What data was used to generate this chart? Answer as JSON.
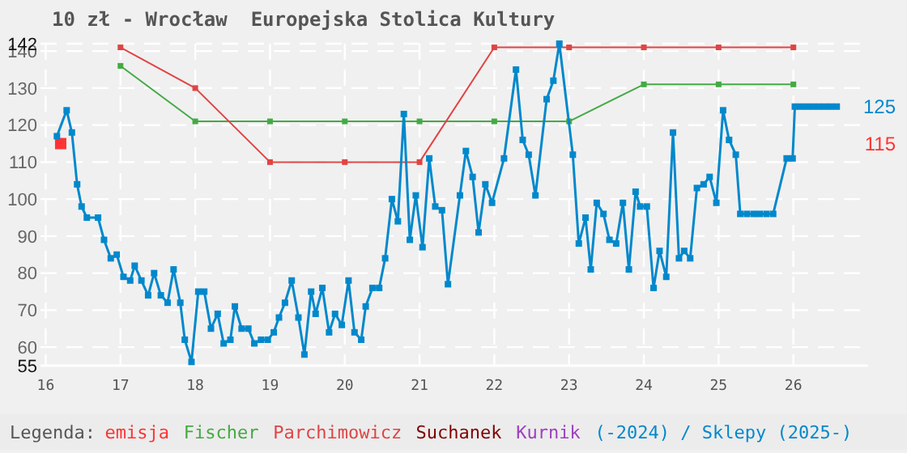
{
  "chart_data": {
    "type": "line",
    "title": "10 zł - Wrocław  Europejska Stolica Kultury",
    "legend_title": "Legenda:",
    "legend": "bottom",
    "grid": true,
    "marker": "square",
    "line_style": "solid",
    "xlim": [
      15.93,
      27
    ],
    "xticks": [
      16,
      17,
      18,
      19,
      20,
      21,
      22,
      23,
      24,
      25,
      26
    ],
    "ylim": [
      55,
      142
    ],
    "yticks": [
      55,
      60,
      70,
      80,
      90,
      100,
      110,
      120,
      130,
      140,
      142
    ],
    "annotations": [
      "125",
      "115"
    ],
    "series": [
      {
        "name": "emisja",
        "type": "scatter",
        "color": "#ff3333",
        "x": [
          16.2
        ],
        "values": [
          115
        ]
      },
      {
        "name": "Fischer",
        "color": "#44aa44",
        "x": [
          17,
          18,
          19,
          20,
          21,
          22,
          23,
          24,
          25,
          26
        ],
        "values": [
          136,
          121,
          121,
          121,
          121,
          121,
          121,
          131,
          131,
          131
        ]
      },
      {
        "name": "Parchimowicz",
        "color": "#e04444",
        "x": [
          17,
          18,
          19,
          20,
          21,
          22,
          23,
          24,
          25,
          26
        ],
        "values": [
          141,
          130,
          110,
          110,
          110,
          141,
          141,
          141,
          141,
          141
        ]
      },
      {
        "name": "Suchanek",
        "color": "#800000"
      },
      {
        "name": "Kurnik",
        "color": "#a040c0"
      },
      {
        "name": "(-2024) / Sklepy (2025-)",
        "color": "#0088cc",
        "x": [
          16.15,
          16.28,
          16.35,
          16.42,
          16.48,
          16.55,
          16.7,
          16.78,
          16.87,
          16.95,
          17.04,
          17.13,
          17.19,
          17.28,
          17.37,
          17.45,
          17.54,
          17.63,
          17.71,
          17.8,
          17.86,
          17.95,
          18.04,
          18.12,
          18.21,
          18.3,
          18.38,
          18.47,
          18.53,
          18.62,
          18.71,
          18.79,
          18.88,
          18.97,
          19.05,
          19.12,
          19.2,
          19.29,
          19.38,
          19.46,
          19.55,
          19.61,
          19.7,
          19.79,
          19.87,
          19.96,
          20.05,
          20.13,
          20.22,
          20.28,
          20.37,
          20.46,
          20.54,
          20.63,
          20.71,
          20.79,
          20.87,
          20.95,
          21.04,
          21.13,
          21.21,
          21.3,
          21.38,
          21.54,
          21.62,
          21.71,
          21.79,
          21.88,
          21.97,
          22.13,
          22.29,
          22.38,
          22.46,
          22.55,
          22.7,
          22.79,
          22.87,
          23.05,
          23.13,
          23.22,
          23.29,
          23.37,
          23.46,
          23.54,
          23.63,
          23.72,
          23.8,
          23.89,
          23.95,
          24.04,
          24.13,
          24.21,
          24.3,
          24.39,
          24.47,
          24.54,
          24.62,
          24.71,
          24.8,
          24.88,
          24.97,
          25.06,
          25.14,
          25.23,
          25.29,
          25.38,
          25.47,
          25.55,
          25.64,
          25.73,
          25.91,
          25.99,
          26.02,
          26.1,
          26.18,
          26.26,
          26.34,
          26.42,
          26.5,
          26.58
        ],
        "values": [
          117,
          124,
          118,
          104,
          98,
          95,
          95,
          89,
          84,
          85,
          79,
          78,
          82,
          78,
          74,
          80,
          74,
          72,
          81,
          72,
          62,
          56,
          75,
          75,
          65,
          69,
          61,
          62,
          71,
          65,
          65,
          61,
          62,
          62,
          64,
          68,
          72,
          78,
          68,
          58,
          75,
          69,
          76,
          64,
          69,
          66,
          78,
          64,
          62,
          71,
          76,
          76,
          84,
          100,
          94,
          123,
          89,
          101,
          87,
          111,
          98,
          97,
          77,
          101,
          113,
          106,
          91,
          104,
          99,
          111,
          135,
          116,
          112,
          101,
          127,
          132,
          142,
          112,
          88,
          95,
          81,
          99,
          96,
          89,
          88,
          99,
          81,
          102,
          98,
          98,
          76,
          86,
          79,
          118,
          84,
          86,
          84,
          103,
          104,
          106,
          99,
          124,
          116,
          112,
          96,
          96,
          96,
          96,
          96,
          96,
          111,
          111,
          125,
          125,
          125,
          125,
          125,
          125,
          125,
          125
        ]
      }
    ]
  }
}
